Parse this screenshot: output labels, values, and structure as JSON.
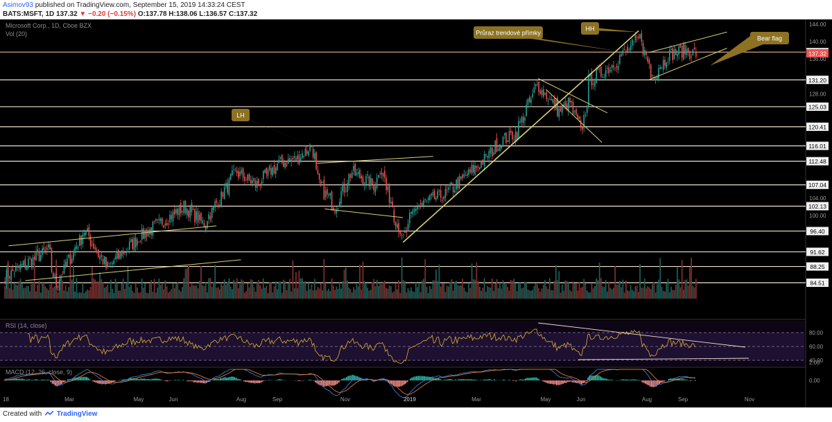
{
  "header": {
    "author": "Asimov93",
    "published_text": "published on TradingView.com, September 15, 2019 14:33:24 CEST",
    "symbol_line_prefix": "BATS:MSFT, 1D",
    "symbol_line_last": "137.32",
    "symbol_line_change": "▼ −0.20 (−0.15%)",
    "symbol_line_ohlc": "O:137.78 H:138.06 L:136.57 C:137.32"
  },
  "footer": {
    "created_with": "Created with",
    "brand": "TradingView"
  },
  "colors": {
    "background": "#000000",
    "up": "#26a69a",
    "down": "#ef5350",
    "trendline": "#d8d27a",
    "support": "#f2e3cf",
    "resistance": "#e8b89a",
    "callout": "#8c7222",
    "rsi": "#c9a233",
    "macd": "#3e7bd6",
    "signal": "#e0783a",
    "last_price_bg": "#ef5350"
  },
  "chart_data": {
    "type": "candlestick",
    "title": "Microsoft Corp., 1D, Cboe BZX",
    "volume_label": "Vol (20)",
    "y_axis_ticks": [
      "144.00",
      "140.00",
      "136.00",
      "132.00",
      "128.00",
      "124.00",
      "120.00",
      "116.00",
      "112.00",
      "108.00",
      "104.00",
      "100.00",
      "96.00",
      "92.00",
      "88.00"
    ],
    "horizontal_levels": [
      {
        "label": "137.59",
        "value": 137.59
      },
      {
        "label": "131.20",
        "value": 131.2
      },
      {
        "label": "125.03",
        "value": 125.03
      },
      {
        "label": "120.41",
        "value": 120.41
      },
      {
        "label": "116.01",
        "value": 116.01
      },
      {
        "label": "112.48",
        "value": 112.48
      },
      {
        "label": "107.04",
        "value": 107.04
      },
      {
        "label": "102.13",
        "value": 102.13
      },
      {
        "label": "96.40",
        "value": 96.4
      },
      {
        "label": "91.62",
        "value": 91.62
      },
      {
        "label": "88.25",
        "value": 88.25
      },
      {
        "label": "84.51",
        "value": 84.51
      }
    ],
    "last_price": {
      "label": "137.32",
      "value": 137.32
    },
    "x_axis_labels": [
      "Mar",
      "May",
      "Jun",
      "Aug",
      "Sep",
      "Nov",
      "2019",
      "Mar",
      "May",
      "Jun",
      "Aug",
      "Sep",
      "Nov"
    ],
    "x_axis_edge_label": "18",
    "annotations": [
      {
        "text": "LH"
      },
      {
        "text": "Průraz trendové přímky"
      },
      {
        "text": "HH"
      },
      {
        "text": "Bear flag"
      }
    ],
    "price_path_keypoints": [
      [
        "2018-01-01",
        86
      ],
      [
        "2018-02-08",
        92
      ],
      [
        "2018-02-15",
        84
      ],
      [
        "2018-03-13",
        96.5
      ],
      [
        "2018-04-02",
        88
      ],
      [
        "2018-05-01",
        95
      ],
      [
        "2018-06-11",
        102
      ],
      [
        "2018-06-28",
        98
      ],
      [
        "2018-07-27",
        110
      ],
      [
        "2018-08-14",
        107
      ],
      [
        "2018-09-04",
        112
      ],
      [
        "2018-09-20",
        113
      ],
      [
        "2018-10-03",
        116
      ],
      [
        "2018-10-10",
        107
      ],
      [
        "2018-10-24",
        102
      ],
      [
        "2018-11-08",
        110
      ],
      [
        "2018-11-28",
        107
      ],
      [
        "2018-12-04",
        111
      ],
      [
        "2018-12-24",
        94
      ],
      [
        "2019-01-04",
        102
      ],
      [
        "2019-02-01",
        105
      ],
      [
        "2019-03-04",
        112
      ],
      [
        "2019-03-22",
        117
      ],
      [
        "2019-04-05",
        119
      ],
      [
        "2019-04-24",
        130
      ],
      [
        "2019-05-14",
        124
      ],
      [
        "2019-05-23",
        126
      ],
      [
        "2019-06-03",
        119
      ],
      [
        "2019-06-10",
        131
      ],
      [
        "2019-06-28",
        134
      ],
      [
        "2019-07-10",
        137
      ],
      [
        "2019-07-26",
        141
      ],
      [
        "2019-08-05",
        132
      ],
      [
        "2019-08-20",
        137
      ],
      [
        "2019-09-04",
        138
      ],
      [
        "2019-09-13",
        137.32
      ]
    ],
    "rsi": {
      "label": "RSI (14, close)",
      "ticks": [
        "80.00",
        "60.00",
        "40.00"
      ],
      "band_upper": 70,
      "band_lower": 30
    },
    "macd": {
      "label": "MACD (12, 26, close, 9)",
      "ticks": [
        "2.00",
        "0.00"
      ]
    }
  }
}
